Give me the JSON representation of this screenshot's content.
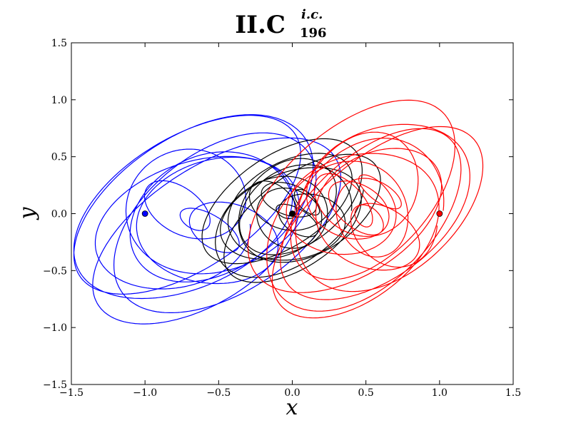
{
  "chart_data": {
    "type": "line",
    "title": "II.C",
    "title_superscript": "i.c.",
    "title_subscript": "196",
    "xlabel": "x",
    "ylabel": "y",
    "xlim": [
      -1.5,
      1.5
    ],
    "ylim": [
      -1.5,
      1.5
    ],
    "x_ticks": [
      -1.5,
      -1.0,
      -0.5,
      0.0,
      0.5,
      1.0,
      1.5
    ],
    "y_ticks": [
      -1.5,
      -1.0,
      -0.5,
      0.0,
      0.5,
      1.0,
      1.5
    ],
    "x_tick_labels": [
      "−1.5",
      "−1.0",
      "−0.5",
      "0.0",
      "0.5",
      "1.0",
      "1.5"
    ],
    "y_tick_labels": [
      "−1.5",
      "−1.0",
      "−0.5",
      "0.0",
      "0.5",
      "1.0",
      "1.5"
    ],
    "grid": false,
    "series": [
      {
        "color": "#0000ff",
        "initial_point": [
          -1.0,
          0.0
        ],
        "orbit_extent": {
          "x": [
            -1.6,
            0.4
          ],
          "y": [
            -1.05,
            0.97
          ]
        }
      },
      {
        "color": "#000000",
        "initial_point": [
          0.0,
          0.0
        ],
        "orbit_extent": {
          "x": [
            -0.65,
            0.65
          ],
          "y": [
            -0.65,
            0.7
          ]
        }
      },
      {
        "color": "#ff0000",
        "initial_point": [
          1.0,
          0.0
        ],
        "orbit_extent": {
          "x": [
            -0.35,
            1.35
          ],
          "y": [
            -1.0,
            1.05
          ]
        }
      }
    ]
  }
}
